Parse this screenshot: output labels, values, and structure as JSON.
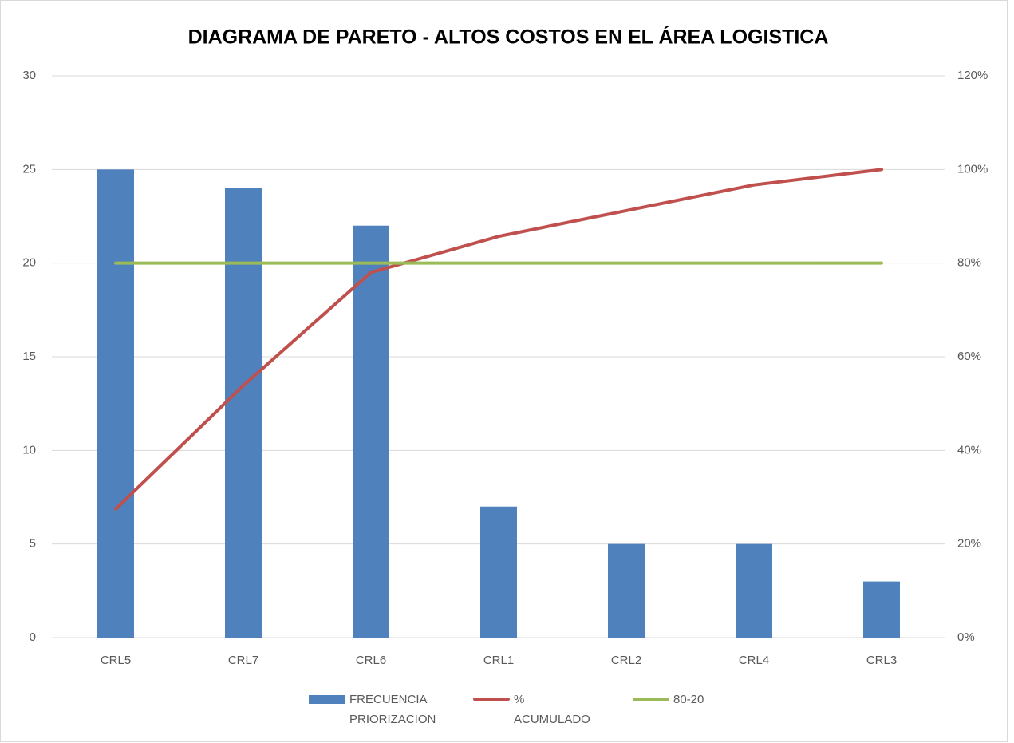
{
  "chart_data": {
    "type": "bar",
    "title": "DIAGRAMA DE PARETO - ALTOS COSTOS EN EL ÁREA LOGISTICA",
    "categories": [
      "CRL5",
      "CRL7",
      "CRL6",
      "CRL1",
      "CRL2",
      "CRL4",
      "CRL3"
    ],
    "series": [
      {
        "name": "FRECUENCIA PRIORIZACION",
        "type": "bar",
        "color": "#4f81bd",
        "values": [
          25,
          24,
          22,
          7,
          5,
          5,
          3
        ]
      },
      {
        "name": "% ACUMULADO",
        "type": "line",
        "axis": "y2",
        "color": "#c0504d",
        "values": [
          27.47,
          53.85,
          78.02,
          85.71,
          91.21,
          96.7,
          100
        ]
      },
      {
        "name": "80-20",
        "type": "line",
        "axis": "y2",
        "color": "#9bbb59",
        "values": [
          80,
          80,
          80,
          80,
          80,
          80,
          80
        ]
      }
    ],
    "ylim": [
      0,
      30
    ],
    "yticks": [
      0,
      5,
      10,
      15,
      20,
      25,
      30
    ],
    "y2lim": [
      0,
      120
    ],
    "y2ticks": [
      {
        "value": 0,
        "label": "0%"
      },
      {
        "value": 20,
        "label": "20%"
      },
      {
        "value": 40,
        "label": "40%"
      },
      {
        "value": 60,
        "label": "60%"
      },
      {
        "value": 80,
        "label": "80%"
      },
      {
        "value": 100,
        "label": "100%"
      },
      {
        "value": 120,
        "label": "120%"
      }
    ],
    "grid": true,
    "legend": "bottom"
  }
}
